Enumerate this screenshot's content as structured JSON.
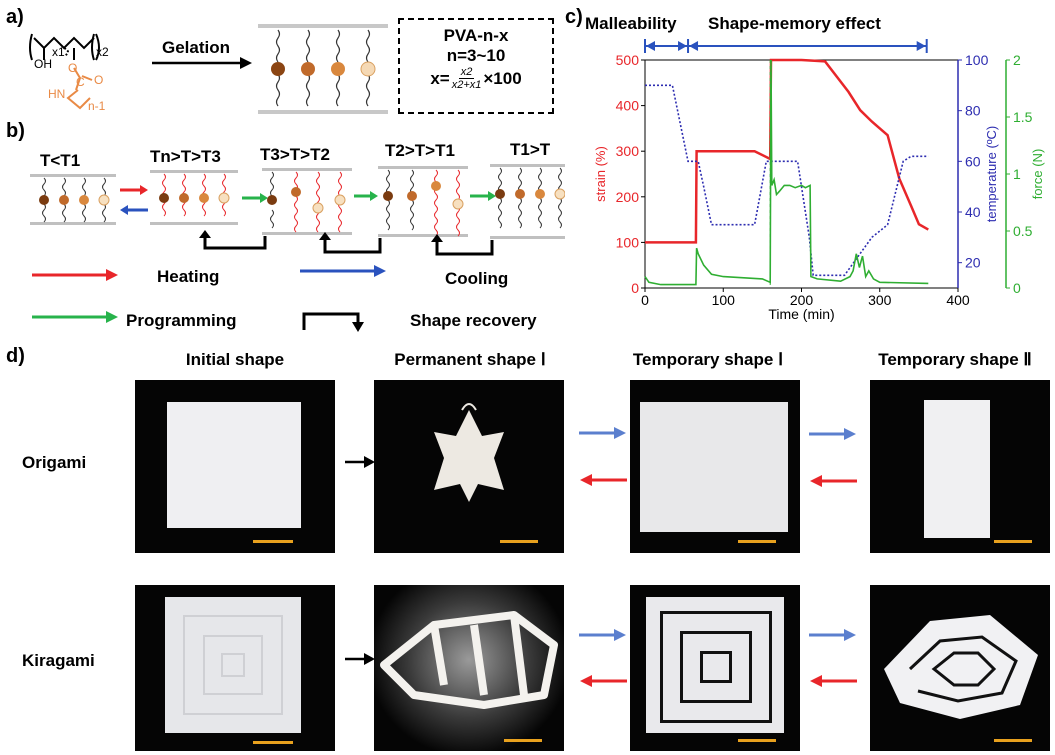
{
  "panel_a": {
    "label": "a)",
    "sub_x1": "x1",
    "sub_x2": "x2",
    "oh": "OH",
    "o": "O",
    "c": "C",
    "hn": "HN",
    "eq_o": "O",
    "n_minus_1": "n-1",
    "arrow_label": "Gelation",
    "box_title": "PVA-n-x",
    "box_n": "n=3~10",
    "box_x_prefix": "x=",
    "box_frac_num": "x2",
    "box_frac_den": "x2+x1",
    "box_x_suffix": "×100"
  },
  "panel_b": {
    "label": "b)",
    "states": [
      "T<T1",
      "Tn>T>T3",
      "T3>T>T2",
      "T2>T>T1",
      "T1>T"
    ],
    "legend": {
      "heating": "Heating",
      "cooling": "Cooling",
      "programming": "Programming",
      "shape_recovery": "Shape recovery"
    },
    "colors": {
      "heating": "#e8262a",
      "cooling": "#2a52be",
      "programming": "#27b34b"
    }
  },
  "panel_c": {
    "label": "c)",
    "malleability": "Malleability",
    "shape_memory": "Shape-memory effect",
    "chart_data": {
      "type": "line",
      "xlabel": "Time (min)",
      "xlim": [
        0,
        400
      ],
      "xticks": [
        "0",
        "100",
        "200",
        "300",
        "400"
      ],
      "series": [
        {
          "name": "strain (%)",
          "axis": "left",
          "color": "#e8262a",
          "ylim": [
            0,
            500
          ],
          "yticks": [
            "0",
            "100",
            "200",
            "300",
            "400",
            "500"
          ],
          "x": [
            0,
            65,
            66,
            72,
            140,
            160,
            161,
            165,
            200,
            230,
            260,
            275,
            290,
            310,
            325,
            340,
            350,
            362
          ],
          "y": [
            100,
            100,
            300,
            300,
            300,
            283,
            500,
            500,
            500,
            497,
            430,
            390,
            365,
            335,
            240,
            180,
            140,
            128
          ]
        },
        {
          "name": "temperature (ºC)",
          "axis": "right1",
          "color": "#2d2db0",
          "ylim": [
            10,
            100
          ],
          "yticks": [
            "20",
            "40",
            "60",
            "80",
            "100"
          ],
          "x": [
            0,
            35,
            45,
            55,
            68,
            75,
            85,
            140,
            155,
            162,
            175,
            195,
            210,
            215,
            245,
            255,
            290,
            310,
            330,
            340,
            362
          ],
          "y": [
            90,
            90,
            75,
            60,
            60,
            50,
            35,
            35,
            60,
            60,
            60,
            60,
            30,
            15,
            15,
            15,
            30,
            35,
            60,
            62,
            62
          ]
        },
        {
          "name": "force (N)",
          "axis": "right2",
          "color": "#2fae32",
          "ylim": [
            0,
            2
          ],
          "yticks": [
            "0",
            "0.5",
            "1",
            "1.5",
            "2"
          ],
          "x": [
            0,
            5,
            20,
            65,
            66,
            68,
            75,
            85,
            100,
            150,
            160,
            161,
            162,
            165,
            168,
            172,
            178,
            185,
            192,
            200,
            205,
            211,
            212,
            220,
            250,
            262,
            266,
            270,
            274,
            278,
            282,
            286,
            292,
            300,
            362
          ],
          "y": [
            0.1,
            0.05,
            0.03,
            0.03,
            0.35,
            0.3,
            0.2,
            0.12,
            0.1,
            0.08,
            0.05,
            2.0,
            0.9,
            0.95,
            0.82,
            0.85,
            0.9,
            0.9,
            0.88,
            0.9,
            0.88,
            0.9,
            0.1,
            0.08,
            0.06,
            0.1,
            0.15,
            0.3,
            0.18,
            0.28,
            0.1,
            0.15,
            0.08,
            0.05,
            0.04
          ]
        }
      ],
      "bracket_times": [
        0,
        55,
        360
      ]
    }
  },
  "panel_d": {
    "label": "d)",
    "col_headers": [
      "Initial shape",
      "Permanent shape Ⅰ",
      "Temporary shape Ⅰ",
      "Temporary shape Ⅱ"
    ],
    "rows": [
      "Origami",
      "Kiragami"
    ]
  }
}
